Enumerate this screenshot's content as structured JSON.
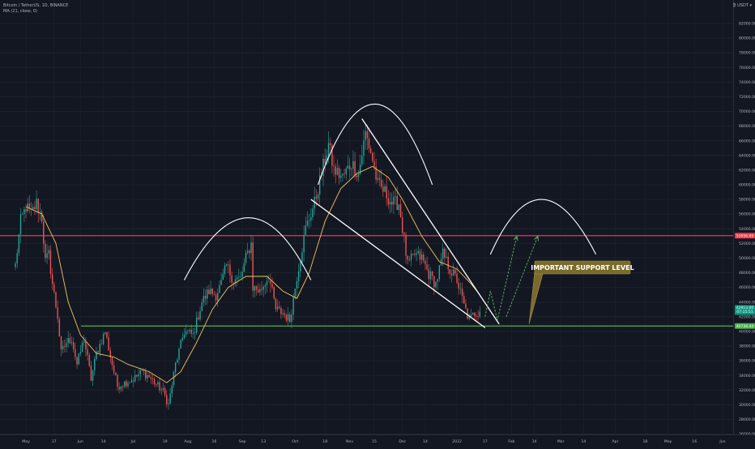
{
  "header": {
    "symbol_line": "Bitcoin / TetherUS, 1D, BINANCE",
    "indicator_line": "MA (21, close, 0)",
    "currency": "₿ USDT ▾"
  },
  "colors": {
    "background": "#131722",
    "up": "#26a69a",
    "down": "#ef5350",
    "ma": "#f5c45e",
    "resistance": "#f23645",
    "support": "#4caf50",
    "arrow": "#66bb6a",
    "callout": "#7b6b2a"
  },
  "chart_data": {
    "type": "candlestick",
    "timeframe": "1D",
    "x_axis_labels": [
      "May",
      "17",
      "Jun",
      "14",
      "Jul",
      "19",
      "Aug",
      "16",
      "Sep",
      "13",
      "Oct",
      "18",
      "Nov",
      "15",
      "Dec",
      "14",
      "2022",
      "17",
      "Feb",
      "14",
      "Mar",
      "14",
      "Apr",
      "18",
      "May",
      "16",
      "Jun"
    ],
    "y_axis_labels": [
      "82000.00",
      "80000.00",
      "78000.00",
      "76000.00",
      "74000.00",
      "72000.00",
      "70000.00",
      "68000.00",
      "66000.00",
      "64000.00",
      "62000.00",
      "60000.00",
      "58000.00",
      "56000.00",
      "54000.00",
      "52000.00",
      "50000.00",
      "48000.00",
      "46000.00",
      "44000.00",
      "42000.00",
      "40000.00",
      "38000.00",
      "36000.00",
      "34000.00",
      "32000.00",
      "30000.00",
      "28000.00",
      "26000.00"
    ],
    "ylim": [
      24400,
      85200
    ],
    "close_path": [
      {
        "date": "2021-04-25",
        "price": 49000
      },
      {
        "date": "2021-04-28",
        "price": 55000
      },
      {
        "date": "2021-05-01",
        "price": 57000
      },
      {
        "date": "2021-05-04",
        "price": 56000
      },
      {
        "date": "2021-05-07",
        "price": 57500
      },
      {
        "date": "2021-05-10",
        "price": 55500
      },
      {
        "date": "2021-05-12",
        "price": 49500
      },
      {
        "date": "2021-05-14",
        "price": 50500
      },
      {
        "date": "2021-05-16",
        "price": 46500
      },
      {
        "date": "2021-05-19",
        "price": 42000
      },
      {
        "date": "2021-05-21",
        "price": 37000
      },
      {
        "date": "2021-05-24",
        "price": 38500
      },
      {
        "date": "2021-05-27",
        "price": 39000
      },
      {
        "date": "2021-05-30",
        "price": 35500
      },
      {
        "date": "2021-06-03",
        "price": 39000
      },
      {
        "date": "2021-06-07",
        "price": 33500
      },
      {
        "date": "2021-06-10",
        "price": 37000
      },
      {
        "date": "2021-06-15",
        "price": 40000
      },
      {
        "date": "2021-06-19",
        "price": 35500
      },
      {
        "date": "2021-06-22",
        "price": 32500
      },
      {
        "date": "2021-06-26",
        "price": 33000
      },
      {
        "date": "2021-07-01",
        "price": 33500
      },
      {
        "date": "2021-07-06",
        "price": 34500
      },
      {
        "date": "2021-07-10",
        "price": 33800
      },
      {
        "date": "2021-07-14",
        "price": 32800
      },
      {
        "date": "2021-07-18",
        "price": 31800
      },
      {
        "date": "2021-07-21",
        "price": 30000
      },
      {
        "date": "2021-07-25",
        "price": 35500
      },
      {
        "date": "2021-07-30",
        "price": 40000
      },
      {
        "date": "2021-08-04",
        "price": 39500
      },
      {
        "date": "2021-08-09",
        "price": 44000
      },
      {
        "date": "2021-08-13",
        "price": 45500
      },
      {
        "date": "2021-08-17",
        "price": 45000
      },
      {
        "date": "2021-08-20",
        "price": 46500
      },
      {
        "date": "2021-08-23",
        "price": 49000
      },
      {
        "date": "2021-08-27",
        "price": 47000
      },
      {
        "date": "2021-08-31",
        "price": 47200
      },
      {
        "date": "2021-09-03",
        "price": 50000
      },
      {
        "date": "2021-09-06",
        "price": 52000
      },
      {
        "date": "2021-09-07",
        "price": 46000
      },
      {
        "date": "2021-09-11",
        "price": 45500
      },
      {
        "date": "2021-09-16",
        "price": 47500
      },
      {
        "date": "2021-09-20",
        "price": 43000
      },
      {
        "date": "2021-09-24",
        "price": 42500
      },
      {
        "date": "2021-09-28",
        "price": 41500
      },
      {
        "date": "2021-10-02",
        "price": 47500
      },
      {
        "date": "2021-10-07",
        "price": 54000
      },
      {
        "date": "2021-10-12",
        "price": 57500
      },
      {
        "date": "2021-10-16",
        "price": 61500
      },
      {
        "date": "2021-10-20",
        "price": 65500
      },
      {
        "date": "2021-10-23",
        "price": 62000
      },
      {
        "date": "2021-10-28",
        "price": 61000
      },
      {
        "date": "2021-11-02",
        "price": 63000
      },
      {
        "date": "2021-11-06",
        "price": 61500
      },
      {
        "date": "2021-11-10",
        "price": 67000
      },
      {
        "date": "2021-11-13",
        "price": 64500
      },
      {
        "date": "2021-11-17",
        "price": 60000
      },
      {
        "date": "2021-11-21",
        "price": 59000
      },
      {
        "date": "2021-11-25",
        "price": 57500
      },
      {
        "date": "2021-11-29",
        "price": 57500
      },
      {
        "date": "2021-12-04",
        "price": 49000
      },
      {
        "date": "2021-12-08",
        "price": 50500
      },
      {
        "date": "2021-12-12",
        "price": 50000
      },
      {
        "date": "2021-12-16",
        "price": 47800
      },
      {
        "date": "2021-12-20",
        "price": 46500
      },
      {
        "date": "2021-12-24",
        "price": 50500
      },
      {
        "date": "2021-12-28",
        "price": 48500
      },
      {
        "date": "2022-01-01",
        "price": 47000
      },
      {
        "date": "2022-01-05",
        "price": 43500
      },
      {
        "date": "2022-01-08",
        "price": 41500
      },
      {
        "date": "2022-01-11",
        "price": 42500
      },
      {
        "date": "2022-01-14",
        "price": 42700
      }
    ],
    "ma_path": [
      {
        "date": "2021-05-01",
        "price": 57000
      },
      {
        "date": "2021-05-10",
        "price": 56000
      },
      {
        "date": "2021-05-18",
        "price": 52000
      },
      {
        "date": "2021-05-25",
        "price": 44000
      },
      {
        "date": "2021-06-01",
        "price": 39500
      },
      {
        "date": "2021-06-10",
        "price": 37000
      },
      {
        "date": "2021-06-20",
        "price": 36500
      },
      {
        "date": "2021-06-28",
        "price": 35500
      },
      {
        "date": "2021-07-10",
        "price": 34500
      },
      {
        "date": "2021-07-20",
        "price": 33000
      },
      {
        "date": "2021-07-28",
        "price": 34500
      },
      {
        "date": "2021-08-06",
        "price": 38500
      },
      {
        "date": "2021-08-15",
        "price": 43000
      },
      {
        "date": "2021-08-24",
        "price": 46000
      },
      {
        "date": "2021-09-03",
        "price": 47500
      },
      {
        "date": "2021-09-15",
        "price": 47500
      },
      {
        "date": "2021-09-24",
        "price": 45500
      },
      {
        "date": "2021-10-02",
        "price": 44500
      },
      {
        "date": "2021-10-09",
        "price": 48000
      },
      {
        "date": "2021-10-18",
        "price": 55000
      },
      {
        "date": "2021-10-27",
        "price": 59500
      },
      {
        "date": "2021-11-05",
        "price": 61500
      },
      {
        "date": "2021-11-14",
        "price": 62500
      },
      {
        "date": "2021-11-23",
        "price": 61000
      },
      {
        "date": "2021-12-01",
        "price": 58000
      },
      {
        "date": "2021-12-12",
        "price": 53000
      },
      {
        "date": "2021-12-22",
        "price": 49500
      },
      {
        "date": "2022-01-01",
        "price": 48500
      },
      {
        "date": "2022-01-09",
        "price": 46500
      },
      {
        "date": "2022-01-14",
        "price": 45000
      }
    ],
    "horizontal_levels": [
      {
        "role": "resistance",
        "price": 53056.89,
        "label": "53056.89"
      },
      {
        "role": "support",
        "price": 40736.44,
        "label": "40736.44"
      }
    ],
    "last_price_badges": [
      "42913.00",
      "07:15:51"
    ],
    "drawings": {
      "arcs": [
        {
          "date_start": "2021-07-30",
          "date_peak": "2021-09-05",
          "date_end": "2021-10-10",
          "price_base": 47000,
          "price_peak": 55500
        },
        {
          "date_start": "2021-10-14",
          "date_peak": "2021-11-15",
          "date_end": "2021-12-18",
          "price_base": 60000,
          "price_peak": 71000
        },
        {
          "date_start": "2022-01-20",
          "date_peak": "2022-02-17",
          "date_end": "2022-03-21",
          "price_base": 50500,
          "price_peak": 58000
        }
      ],
      "wedge_lines": [
        {
          "from": {
            "date": "2021-11-08",
            "price": 69000
          },
          "to": {
            "date": "2022-01-25",
            "price": 41000
          }
        },
        {
          "from": {
            "date": "2021-10-10",
            "price": 58000
          },
          "to": {
            "date": "2022-01-17",
            "price": 40500
          }
        }
      ],
      "projection_arrows": [
        [
          {
            "date": "2022-01-17",
            "price": 42000
          },
          {
            "date": "2022-01-20",
            "price": 45500
          },
          {
            "date": "2022-01-24",
            "price": 41500
          },
          {
            "date": "2022-02-04",
            "price": 53000
          }
        ],
        [
          {
            "date": "2022-01-29",
            "price": 42000
          },
          {
            "date": "2022-02-16",
            "price": 53000
          }
        ]
      ],
      "callout": {
        "text": "IMPORTANT SUPPORT LEVEL",
        "pointer_date": "2022-02-11",
        "pointer_price": 41000
      }
    }
  }
}
